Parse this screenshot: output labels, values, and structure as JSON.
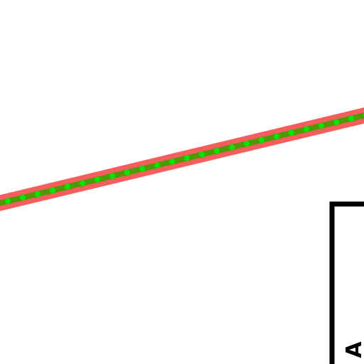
{
  "labels": [
    "A"
  ]
}
